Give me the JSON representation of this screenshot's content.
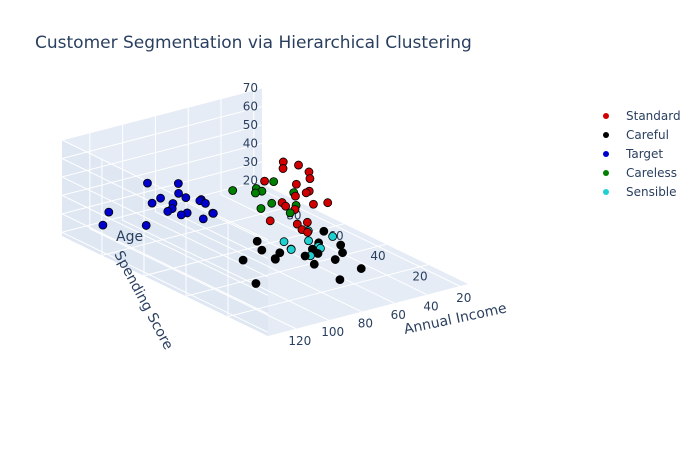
{
  "title": "Customer Segmentation via Hierarchical Clustering",
  "legend": [
    {
      "name": "Standard",
      "color": "#d00000"
    },
    {
      "name": "Careful",
      "color": "#000000"
    },
    {
      "name": "Target",
      "color": "#0000cc"
    },
    {
      "name": "Careless",
      "color": "#008000"
    },
    {
      "name": "Sensible",
      "color": "#20d0d0"
    }
  ],
  "chart_data": {
    "type": "scatter",
    "title": "Customer Segmentation via Hierarchical Clustering",
    "axes": {
      "x": {
        "label": "Annual Income",
        "ticks": [
          "20",
          "40",
          "60",
          "80",
          "100",
          "120"
        ],
        "range": [
          15,
          137
        ]
      },
      "y": {
        "label": "Spending Score",
        "ticks": [
          "20",
          "40",
          "60",
          "80"
        ],
        "range": [
          1,
          99
        ]
      },
      "z": {
        "label": "Age",
        "ticks": [
          "20",
          "30",
          "40",
          "50",
          "60",
          "70"
        ],
        "range": [
          18,
          70
        ]
      }
    },
    "legend_placement": "top-right",
    "series": [
      {
        "name": "Standard",
        "color": "#d00000",
        "points": [
          [
            62,
            40,
            68
          ],
          [
            55,
            45,
            60
          ],
          [
            58,
            43,
            55
          ],
          [
            60,
            48,
            50
          ],
          [
            65,
            50,
            65
          ],
          [
            63,
            52,
            45
          ],
          [
            57,
            55,
            40
          ],
          [
            54,
            47,
            35
          ],
          [
            50,
            50,
            27
          ],
          [
            48,
            42,
            47
          ],
          [
            60,
            60,
            30
          ],
          [
            62,
            46,
            58
          ],
          [
            53,
            52,
            63
          ],
          [
            58,
            41,
            49
          ],
          [
            64,
            44,
            38
          ],
          [
            66,
            58,
            54
          ],
          [
            59,
            49,
            42
          ],
          [
            47,
            55,
            25
          ],
          [
            61,
            53,
            66
          ],
          [
            56,
            46,
            52
          ]
        ]
      },
      {
        "name": "Careful",
        "color": "#000000",
        "points": [
          [
            120,
            20,
            32
          ],
          [
            115,
            30,
            38
          ],
          [
            110,
            25,
            45
          ],
          [
            105,
            15,
            50
          ],
          [
            100,
            35,
            42
          ],
          [
            95,
            10,
            48
          ],
          [
            90,
            20,
            40
          ],
          [
            88,
            5,
            35
          ],
          [
            85,
            15,
            55
          ],
          [
            80,
            10,
            45
          ],
          [
            78,
            25,
            30
          ],
          [
            75,
            5,
            38
          ],
          [
            98,
            28,
            36
          ],
          [
            92,
            12,
            52
          ],
          [
            83,
            22,
            41
          ],
          [
            108,
            18,
            47
          ],
          [
            87,
            8,
            44
          ],
          [
            72,
            30,
            33
          ],
          [
            103,
            24,
            39
          ],
          [
            76,
            14,
            46
          ]
        ]
      },
      {
        "name": "Target",
        "color": "#0000cc",
        "points": [
          [
            130,
            85,
            30
          ],
          [
            120,
            90,
            32
          ],
          [
            110,
            80,
            28
          ],
          [
            100,
            85,
            35
          ],
          [
            95,
            75,
            33
          ],
          [
            90,
            95,
            38
          ],
          [
            85,
            80,
            29
          ],
          [
            80,
            88,
            34
          ],
          [
            78,
            73,
            31
          ],
          [
            75,
            92,
            36
          ],
          [
            72,
            78,
            27
          ],
          [
            70,
            85,
            30
          ],
          [
            88,
            70,
            32
          ],
          [
            82,
            95,
            28
          ],
          [
            98,
            77,
            36
          ],
          [
            76,
            81,
            33
          ],
          [
            73,
            90,
            29
          ],
          [
            86,
            86,
            31
          ],
          [
            79,
            76,
            35
          ],
          [
            93,
            83,
            30
          ]
        ]
      },
      {
        "name": "Careless",
        "color": "#008000",
        "points": [
          [
            20,
            80,
            25
          ],
          [
            25,
            75,
            22
          ],
          [
            30,
            90,
            24
          ],
          [
            35,
            70,
            23
          ],
          [
            40,
            80,
            21
          ],
          [
            28,
            92,
            20
          ],
          [
            33,
            85,
            26
          ],
          [
            38,
            95,
            22
          ],
          [
            22,
            88,
            27
          ],
          [
            36,
            78,
            24
          ]
        ]
      },
      {
        "name": "Sensible",
        "color": "#20d0d0",
        "points": [
          [
            55,
            40,
            25
          ],
          [
            50,
            45,
            22
          ],
          [
            60,
            50,
            20
          ],
          [
            45,
            42,
            28
          ],
          [
            58,
            55,
            21
          ],
          [
            52,
            48,
            24
          ],
          [
            47,
            52,
            26
          ],
          [
            56,
            44,
            19
          ]
        ]
      }
    ]
  }
}
